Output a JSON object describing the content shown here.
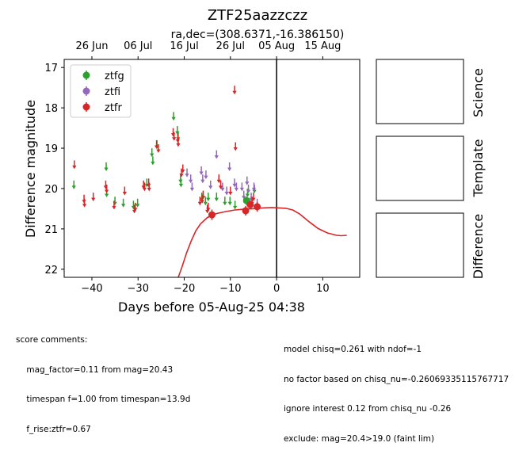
{
  "chart_data": {
    "type": "scatter",
    "title": "ZTF25aazzczz",
    "subtitle": "ra,dec=(308.6371,-16.386150)",
    "xlabel": "Days before 05-Aug-25 04:38",
    "ylabel": "Difference magnitude",
    "xlim": [
      -46,
      18
    ],
    "ylim": [
      22.2,
      16.8
    ],
    "x_ticks": [
      -40,
      -30,
      -20,
      -10,
      0,
      10
    ],
    "y_ticks": [
      17,
      18,
      19,
      20,
      21,
      22
    ],
    "top_axis_ticks": [
      {
        "label": "26 Jun",
        "x": -40
      },
      {
        "label": "06 Jul",
        "x": -30
      },
      {
        "label": "16 Jul",
        "x": -20
      },
      {
        "label": "26 Jul",
        "x": -10
      },
      {
        "label": "05 Aug",
        "x": 0
      },
      {
        "label": "15 Aug",
        "x": 10
      }
    ],
    "vline_x": 0,
    "legend_position": "top-left",
    "series": [
      {
        "name": "ztfg",
        "color": "#2ca02c",
        "upper_limits": [
          [
            -43.9,
            19.9
          ],
          [
            -36.9,
            19.45
          ],
          [
            -36.8,
            20.1
          ],
          [
            -35.0,
            20.3
          ],
          [
            -33.2,
            20.35
          ],
          [
            -31.0,
            20.4
          ],
          [
            -30.1,
            20.35
          ],
          [
            -28.1,
            19.85
          ],
          [
            -27.0,
            19.1
          ],
          [
            -26.8,
            19.3
          ],
          [
            -25.9,
            18.9
          ],
          [
            -22.3,
            18.2
          ],
          [
            -21.5,
            18.55
          ],
          [
            -21.3,
            18.7
          ],
          [
            -20.8,
            19.75
          ],
          [
            -20.7,
            19.85
          ],
          [
            -16.2,
            20.2
          ],
          [
            -15.4,
            20.3
          ],
          [
            -14.8,
            20.2
          ],
          [
            -13.0,
            20.2
          ],
          [
            -11.2,
            20.3
          ],
          [
            -10.1,
            20.3
          ],
          [
            -9.0,
            20.4
          ],
          [
            -6.5,
            20.3
          ],
          [
            -6.3,
            20.1
          ],
          [
            -4.8,
            20.0
          ]
        ],
        "detections": [
          {
            "x": -6.5,
            "y": 20.3,
            "err": 0.1
          }
        ]
      },
      {
        "name": "ztfi",
        "color": "#9467bd",
        "upper_limits": [
          [
            -19.4,
            19.6
          ],
          [
            -18.6,
            19.75
          ],
          [
            -18.3,
            19.95
          ],
          [
            -16.3,
            19.55
          ],
          [
            -16.0,
            19.75
          ],
          [
            -15.3,
            19.65
          ],
          [
            -14.3,
            19.9
          ],
          [
            -13.0,
            19.15
          ],
          [
            -11.7,
            19.95
          ],
          [
            -10.8,
            20.05
          ],
          [
            -10.2,
            19.45
          ],
          [
            -9.1,
            19.85
          ],
          [
            -8.7,
            19.95
          ],
          [
            -7.5,
            19.95
          ],
          [
            -7.1,
            20.15
          ],
          [
            -6.4,
            19.8
          ],
          [
            -6.1,
            20.0
          ],
          [
            -5.5,
            20.2
          ],
          [
            -4.9,
            19.95
          ],
          [
            -4.2,
            20.35
          ]
        ],
        "detections": []
      },
      {
        "name": "ztfr",
        "color": "#d62728",
        "upper_limits": [
          [
            -43.8,
            19.4
          ],
          [
            -41.7,
            20.25
          ],
          [
            -41.6,
            20.35
          ],
          [
            -39.7,
            20.2
          ],
          [
            -37.0,
            19.9
          ],
          [
            -36.8,
            20.0
          ],
          [
            -35.2,
            20.4
          ],
          [
            -32.9,
            20.05
          ],
          [
            -30.8,
            20.5
          ],
          [
            -30.6,
            20.45
          ],
          [
            -28.8,
            19.9
          ],
          [
            -28.6,
            19.95
          ],
          [
            -27.7,
            19.85
          ],
          [
            -27.6,
            19.95
          ],
          [
            -26.0,
            18.9
          ],
          [
            -25.6,
            19.0
          ],
          [
            -22.4,
            18.6
          ],
          [
            -22.2,
            18.7
          ],
          [
            -21.4,
            18.75
          ],
          [
            -21.3,
            18.85
          ],
          [
            -20.6,
            19.6
          ],
          [
            -20.3,
            19.5
          ],
          [
            -16.6,
            20.3
          ],
          [
            -16.1,
            20.25
          ],
          [
            -15.9,
            20.15
          ],
          [
            -15.0,
            20.5
          ],
          [
            -14.8,
            20.45
          ],
          [
            -12.5,
            19.75
          ],
          [
            -12.1,
            19.9
          ],
          [
            -10.0,
            20.05
          ],
          [
            -9.1,
            17.55
          ],
          [
            -8.9,
            18.95
          ],
          [
            -6.2,
            20.35
          ],
          [
            -5.3,
            20.3
          ],
          [
            -5.0,
            20.2
          ],
          [
            -4.2,
            20.45
          ]
        ],
        "detections": [
          {
            "x": -14.0,
            "y": 20.65,
            "err": 0.13
          },
          {
            "x": -6.7,
            "y": 20.55,
            "err": 0.12
          },
          {
            "x": -5.7,
            "y": 20.4,
            "err": 0.1
          },
          {
            "x": -4.2,
            "y": 20.45,
            "err": 0.12
          }
        ]
      }
    ],
    "model_curve": {
      "color": "#d62728",
      "points": [
        [
          -21.3,
          22.2
        ],
        [
          -20.5,
          21.95
        ],
        [
          -19.5,
          21.6
        ],
        [
          -18.5,
          21.3
        ],
        [
          -17.5,
          21.05
        ],
        [
          -16.5,
          20.88
        ],
        [
          -15.0,
          20.72
        ],
        [
          -13.0,
          20.62
        ],
        [
          -11.0,
          20.57
        ],
        [
          -9.0,
          20.53
        ],
        [
          -7.0,
          20.51
        ],
        [
          -5.0,
          20.5
        ],
        [
          -3.0,
          20.48
        ],
        [
          -1.0,
          20.47
        ],
        [
          0.5,
          20.48
        ],
        [
          2.0,
          20.49
        ],
        [
          3.5,
          20.53
        ],
        [
          5.0,
          20.63
        ],
        [
          7.0,
          20.82
        ],
        [
          9.0,
          20.99
        ],
        [
          11.0,
          21.1
        ],
        [
          13.0,
          21.16
        ],
        [
          14.0,
          21.17
        ],
        [
          15.2,
          21.16
        ]
      ]
    },
    "panels": [
      "Science",
      "Template",
      "Difference"
    ]
  },
  "comments_left": [
    "score comments:",
    "    mag_factor=0.11 from mag=20.43",
    "    timespan f=1.00 from timespan=13.9d",
    "    f_rise:ztfr=0.67"
  ],
  "comments_right": [
    "model chisq=0.261 with ndof=-1",
    "no factor based on chisq_nu=-0.26069335115767717",
    "ignore interest 0.12 from chisq_nu -0.26",
    "exclude: mag=20.4>19.0 (faint lim)"
  ]
}
